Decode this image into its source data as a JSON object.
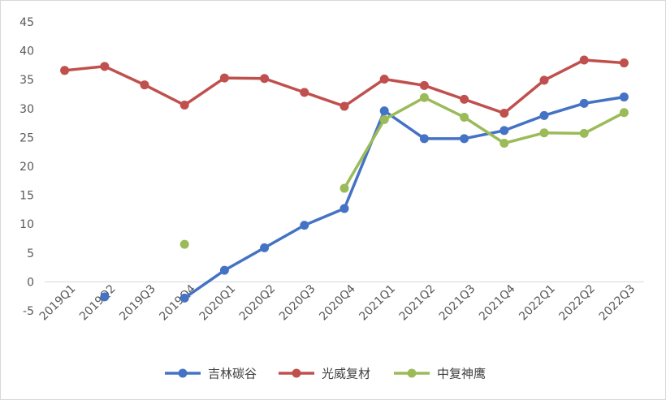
{
  "chart_data": {
    "type": "line",
    "title": "",
    "xlabel": "",
    "ylabel": "",
    "ylim": [
      -5,
      45
    ],
    "yticks": [
      -5,
      0,
      5,
      10,
      15,
      20,
      25,
      30,
      35,
      40,
      45
    ],
    "grid": false,
    "legend_position": "bottom",
    "categories": [
      "2019Q1",
      "2019Q2",
      "2019Q3",
      "2019Q4",
      "2020Q1",
      "2020Q2",
      "2020Q3",
      "2020Q4",
      "2021Q1",
      "2021Q2",
      "2021Q3",
      "2021Q4",
      "2022Q1",
      "2022Q2",
      "2022Q3"
    ],
    "series": [
      {
        "name": "吉林碳谷",
        "color": "#4472c4",
        "values": [
          null,
          -2.6,
          null,
          -2.8,
          2.0,
          5.9,
          9.8,
          12.7,
          29.6,
          24.8,
          24.8,
          26.2,
          28.8,
          30.9,
          32.0
        ]
      },
      {
        "name": "光威复材",
        "color": "#c0504d",
        "values": [
          36.6,
          37.3,
          34.1,
          30.6,
          35.3,
          35.2,
          32.8,
          30.4,
          35.1,
          34.0,
          31.6,
          29.2,
          34.9,
          38.4,
          37.9
        ]
      },
      {
        "name": "中复神鹰",
        "color": "#9bbb59",
        "values": [
          null,
          null,
          null,
          6.5,
          null,
          null,
          null,
          16.2,
          28.1,
          31.9,
          28.5,
          24.0,
          25.8,
          25.7,
          29.3
        ]
      }
    ]
  }
}
